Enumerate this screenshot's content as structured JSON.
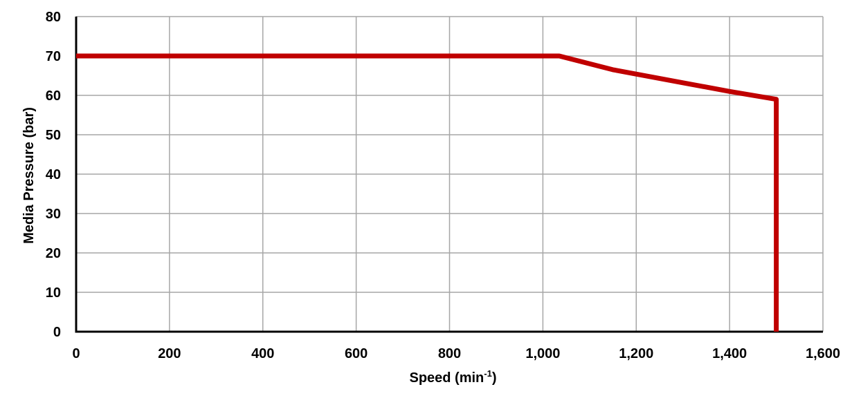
{
  "chart_data": {
    "type": "line",
    "title": "",
    "xlabel": {
      "main": "Speed (min",
      "sup": "-1",
      "close": ")"
    },
    "ylabel": "Media Pressure (bar)",
    "xlim": [
      0,
      1600
    ],
    "ylim": [
      0,
      80
    ],
    "x_ticks": [
      0,
      200,
      400,
      600,
      800,
      1000,
      1200,
      1400,
      1600
    ],
    "x_tick_labels": [
      "0",
      "200",
      "400",
      "600",
      "800",
      "1,000",
      "1,200",
      "1,400",
      "1,600"
    ],
    "y_ticks": [
      0,
      10,
      20,
      30,
      40,
      50,
      60,
      70,
      80
    ],
    "y_tick_labels": [
      "0",
      "10",
      "20",
      "30",
      "40",
      "50",
      "60",
      "70",
      "80"
    ],
    "grid": true,
    "series": [
      {
        "color": "#c00000",
        "points": [
          {
            "x": 0,
            "y": 70
          },
          {
            "x": 1035,
            "y": 70
          },
          {
            "x": 1150,
            "y": 66.5
          },
          {
            "x": 1300,
            "y": 63.2
          },
          {
            "x": 1400,
            "y": 61
          },
          {
            "x": 1500,
            "y": 59
          },
          {
            "x": 1500,
            "y": 0
          }
        ]
      }
    ],
    "colors": {
      "grid": "#a6a6a6",
      "axis": "#000000",
      "series": "#c00000"
    }
  }
}
